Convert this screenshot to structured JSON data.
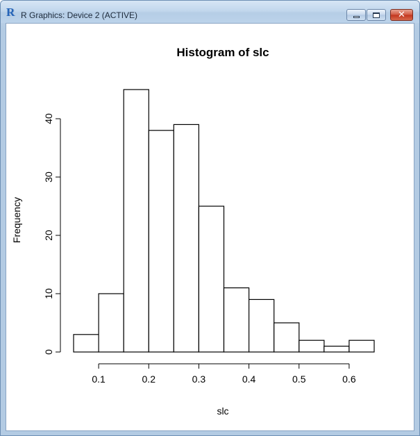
{
  "window": {
    "title": "R Graphics: Device 2 (ACTIVE)",
    "logo_text": "R",
    "icons": {
      "app": "r-logo-icon",
      "minimize": "minimize-icon",
      "maximize": "maximize-icon",
      "close": "close-icon"
    }
  },
  "chart_data": {
    "type": "bar",
    "title": "Histogram of slc",
    "xlabel": "slc",
    "ylabel": "Frequency",
    "bins": [
      {
        "start": 0.05,
        "end": 0.1,
        "count": 3
      },
      {
        "start": 0.1,
        "end": 0.15,
        "count": 10
      },
      {
        "start": 0.15,
        "end": 0.2,
        "count": 45
      },
      {
        "start": 0.2,
        "end": 0.25,
        "count": 38
      },
      {
        "start": 0.25,
        "end": 0.3,
        "count": 39
      },
      {
        "start": 0.3,
        "end": 0.35,
        "count": 25
      },
      {
        "start": 0.35,
        "end": 0.4,
        "count": 11
      },
      {
        "start": 0.4,
        "end": 0.45,
        "count": 9
      },
      {
        "start": 0.45,
        "end": 0.5,
        "count": 5
      },
      {
        "start": 0.5,
        "end": 0.55,
        "count": 2
      },
      {
        "start": 0.55,
        "end": 0.6,
        "count": 1
      },
      {
        "start": 0.6,
        "end": 0.65,
        "count": 2
      }
    ],
    "xlim": [
      0.05,
      0.65
    ],
    "ylim": [
      0,
      45
    ],
    "xticks": [
      0.1,
      0.2,
      0.3,
      0.4,
      0.5,
      0.6
    ],
    "xtick_labels": [
      "0.1",
      "0.2",
      "0.3",
      "0.4",
      "0.5",
      "0.6"
    ],
    "yticks": [
      0,
      10,
      20,
      30,
      40
    ],
    "ytick_labels": [
      "0",
      "10",
      "20",
      "30",
      "40"
    ],
    "grid": false,
    "bar_fill": "#ffffff",
    "bar_stroke": "#000000"
  }
}
